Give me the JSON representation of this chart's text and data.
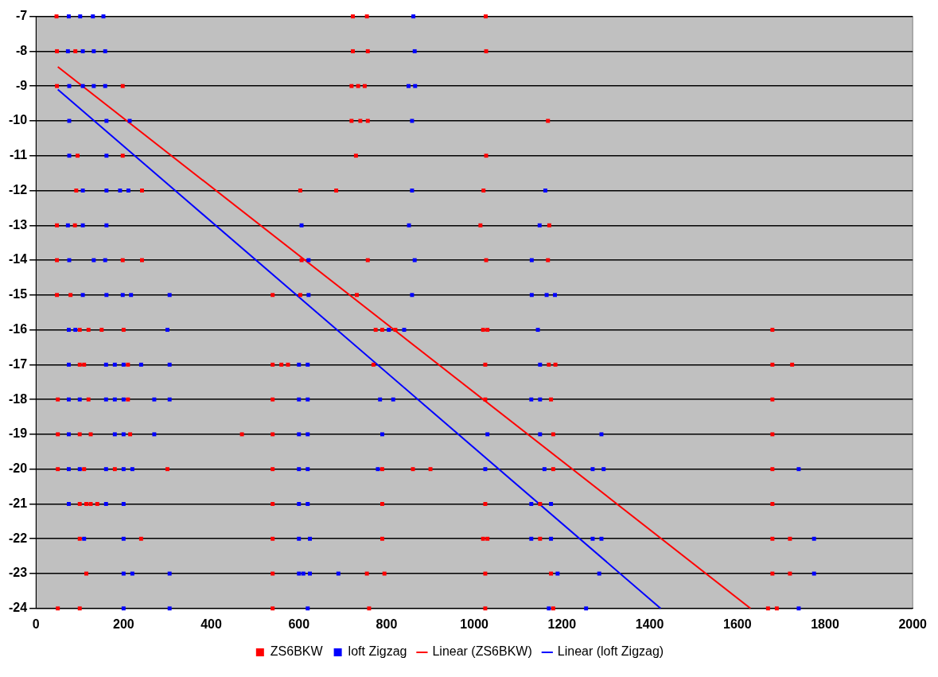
{
  "chart_data": {
    "type": "scatter",
    "xlim": [
      0,
      2000
    ],
    "xticks": [
      0,
      200,
      400,
      600,
      800,
      1000,
      1200,
      1400,
      1600,
      1800,
      2000
    ],
    "ylim": [
      -24,
      -7
    ],
    "yticks": [
      -7,
      -8,
      -9,
      -10,
      -11,
      -12,
      -13,
      -14,
      -15,
      -16,
      -17,
      -18,
      -19,
      -20,
      -21,
      -22,
      -23,
      -24
    ],
    "grid": "y",
    "legend": "bottom",
    "series": [
      {
        "name": "ZS6BKW",
        "type": "scatter",
        "marker": "square",
        "color": "#ff0000",
        "x": [
          48,
          90,
          723,
          757,
          1027,
          48,
          198,
          720,
          735,
          750,
          720,
          740,
          757,
          1168,
          95,
          198,
          730,
          1027,
          92,
          242,
          603,
          685,
          1021,
          48,
          89,
          1014,
          1171,
          48,
          198,
          242,
          606,
          757,
          1027,
          1168,
          48,
          79,
          540,
          603,
          732,
          100,
          120,
          150,
          200,
          775,
          790,
          820,
          1020,
          1030,
          1680,
          100,
          110,
          210,
          540,
          560,
          575,
          770,
          1025,
          1170,
          1185,
          1680,
          1725,
          50,
          120,
          210,
          540,
          1025,
          1175,
          1680,
          50,
          100,
          125,
          215,
          470,
          540,
          1180,
          1680,
          50,
          110,
          180,
          300,
          540,
          790,
          860,
          900,
          1180,
          1680,
          100,
          115,
          125,
          140,
          540,
          790,
          1025,
          1150,
          1680,
          100,
          240,
          540,
          790,
          1020,
          1030,
          1150,
          1680,
          1720,
          115,
          540,
          755,
          795,
          1025,
          1175,
          1680,
          1720,
          50,
          100,
          540,
          760,
          1025,
          1180,
          1670,
          1690,
          47,
          723,
          755,
          1026
        ],
        "values": [
          -8,
          -8,
          -8,
          -8,
          -8,
          -9,
          -9,
          -9,
          -9,
          -9,
          -10,
          -10,
          -10,
          -10,
          -11,
          -11,
          -11,
          -11,
          -12,
          -12,
          -12,
          -12,
          -12,
          -13,
          -13,
          -13,
          -13,
          -14,
          -14,
          -14,
          -14,
          -14,
          -14,
          -14,
          -15,
          -15,
          -15,
          -15,
          -15,
          -16,
          -16,
          -16,
          -16,
          -16,
          -16,
          -16,
          -16,
          -16,
          -16,
          -17,
          -17,
          -17,
          -17,
          -17,
          -17,
          -17,
          -17,
          -17,
          -17,
          -17,
          -17,
          -18,
          -18,
          -18,
          -18,
          -18,
          -18,
          -18,
          -19,
          -19,
          -19,
          -19,
          -19,
          -19,
          -19,
          -19,
          -20,
          -20,
          -20,
          -20,
          -20,
          -20,
          -20,
          -20,
          -20,
          -20,
          -21,
          -21,
          -21,
          -21,
          -21,
          -21,
          -21,
          -21,
          -21,
          -22,
          -22,
          -22,
          -22,
          -22,
          -22,
          -22,
          -22,
          -22,
          -23,
          -23,
          -23,
          -23,
          -23,
          -23,
          -23,
          -23,
          -24,
          -24,
          -24,
          -24,
          -24,
          -24,
          -24,
          -24,
          -7,
          -7,
          -7,
          -7
        ]
      },
      {
        "name": "loft Zigzag",
        "type": "scatter",
        "marker": "square",
        "color": "#0000ff",
        "x": [
          73,
          107,
          132,
          158,
          864,
          76,
          107,
          132,
          158,
          850,
          865,
          76,
          161,
          214,
          858,
          76,
          161,
          107,
          161,
          192,
          211,
          858,
          1162,
          73,
          107,
          161,
          606,
          851,
          1149,
          76,
          132,
          158,
          622,
          864,
          1131,
          107,
          161,
          198,
          217,
          305,
          622,
          858,
          1131,
          1165,
          1184,
          75,
          90,
          300,
          805,
          840,
          1145,
          75,
          160,
          180,
          200,
          240,
          305,
          600,
          620,
          1150,
          75,
          100,
          160,
          180,
          200,
          270,
          305,
          600,
          620,
          785,
          815,
          1130,
          1150,
          75,
          180,
          200,
          270,
          600,
          620,
          790,
          1030,
          1150,
          1290,
          75,
          100,
          160,
          200,
          220,
          600,
          620,
          780,
          1025,
          1160,
          1270,
          1295,
          1740,
          75,
          160,
          200,
          600,
          620,
          1130,
          1175,
          110,
          200,
          600,
          625,
          1130,
          1175,
          1270,
          1290,
          1775,
          200,
          220,
          305,
          600,
          610,
          625,
          690,
          1190,
          1285,
          1775,
          200,
          305,
          620,
          1170,
          1255,
          1740,
          75,
          101,
          130,
          154,
          861
        ],
        "values": [
          -8,
          -8,
          -8,
          -8,
          -8,
          -9,
          -9,
          -9,
          -9,
          -9,
          -9,
          -10,
          -10,
          -10,
          -10,
          -11,
          -11,
          -12,
          -12,
          -12,
          -12,
          -12,
          -12,
          -13,
          -13,
          -13,
          -13,
          -13,
          -13,
          -14,
          -14,
          -14,
          -14,
          -14,
          -14,
          -15,
          -15,
          -15,
          -15,
          -15,
          -15,
          -15,
          -15,
          -15,
          -15,
          -16,
          -16,
          -16,
          -16,
          -16,
          -16,
          -17,
          -17,
          -17,
          -17,
          -17,
          -17,
          -17,
          -17,
          -17,
          -18,
          -18,
          -18,
          -18,
          -18,
          -18,
          -18,
          -18,
          -18,
          -18,
          -18,
          -18,
          -18,
          -19,
          -19,
          -19,
          -19,
          -19,
          -19,
          -19,
          -19,
          -19,
          -19,
          -20,
          -20,
          -20,
          -20,
          -20,
          -20,
          -20,
          -20,
          -20,
          -20,
          -20,
          -20,
          -20,
          -21,
          -21,
          -21,
          -21,
          -21,
          -21,
          -21,
          -22,
          -22,
          -22,
          -22,
          -22,
          -22,
          -22,
          -22,
          -22,
          -23,
          -23,
          -23,
          -23,
          -23,
          -23,
          -23,
          -23,
          -23,
          -23,
          -24,
          -24,
          -24,
          -24,
          -24,
          -24,
          -7,
          -7,
          -7,
          -7,
          -7
        ]
      },
      {
        "name": "Linear (ZS6BKW)",
        "type": "line",
        "color": "#ff0000",
        "x": [
          50,
          1630
        ],
        "values": [
          -8.45,
          -24
        ]
      },
      {
        "name": "Linear (loft Zigzag)",
        "type": "line",
        "color": "#0000ff",
        "x": [
          50,
          1425
        ],
        "values": [
          -9.1,
          -24
        ]
      }
    ]
  }
}
